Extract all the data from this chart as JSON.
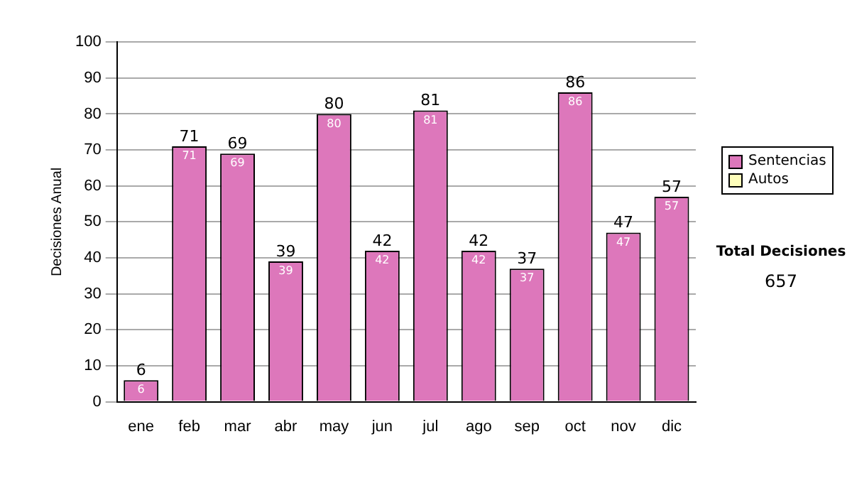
{
  "chart_data": {
    "type": "bar",
    "ylabel": "Decisiones Anual",
    "categories": [
      "ene",
      "feb",
      "mar",
      "abr",
      "may",
      "jun",
      "jul",
      "ago",
      "sep",
      "oct",
      "nov",
      "dic"
    ],
    "series": [
      {
        "name": "Sentencias",
        "color": "#dd77bb",
        "values": [
          6,
          71,
          69,
          39,
          80,
          42,
          81,
          42,
          37,
          86,
          47,
          57
        ],
        "value_labels": [
          "6",
          "71",
          "69",
          "39",
          "80",
          "42",
          "81",
          "42",
          "37",
          "86",
          "47",
          "57"
        ]
      },
      {
        "name": "Autos",
        "color": "#ffffbb",
        "values": [
          null,
          null,
          null,
          null,
          null,
          null,
          null,
          null,
          null,
          null,
          null,
          null
        ]
      }
    ],
    "ylim": [
      0,
      100
    ],
    "yticks": [
      0,
      10,
      20,
      30,
      40,
      50,
      60,
      70,
      80,
      90,
      100
    ],
    "grid": "y",
    "legend": "right",
    "annotations": [
      "Total Decisiones",
      "657",
      {
        "text": "6",
        "x": "ene",
        "y": 6
      },
      {
        "text": "71",
        "x": "feb",
        "y": 71
      },
      {
        "text": "69",
        "x": "mar",
        "y": 69
      },
      {
        "text": "39",
        "x": "abr",
        "y": 39
      },
      {
        "text": "80",
        "x": "may",
        "y": 80
      },
      {
        "text": "42",
        "x": "jun",
        "y": 42
      },
      {
        "text": "81",
        "x": "jul",
        "y": 81
      },
      {
        "text": "42",
        "x": "ago",
        "y": 42
      },
      {
        "text": "37",
        "x": "sep",
        "y": 37
      },
      {
        "text": "86",
        "x": "oct",
        "y": 86
      },
      {
        "text": "47",
        "x": "nov",
        "y": 47
      },
      {
        "text": "57",
        "x": "dic",
        "y": 57
      }
    ]
  }
}
